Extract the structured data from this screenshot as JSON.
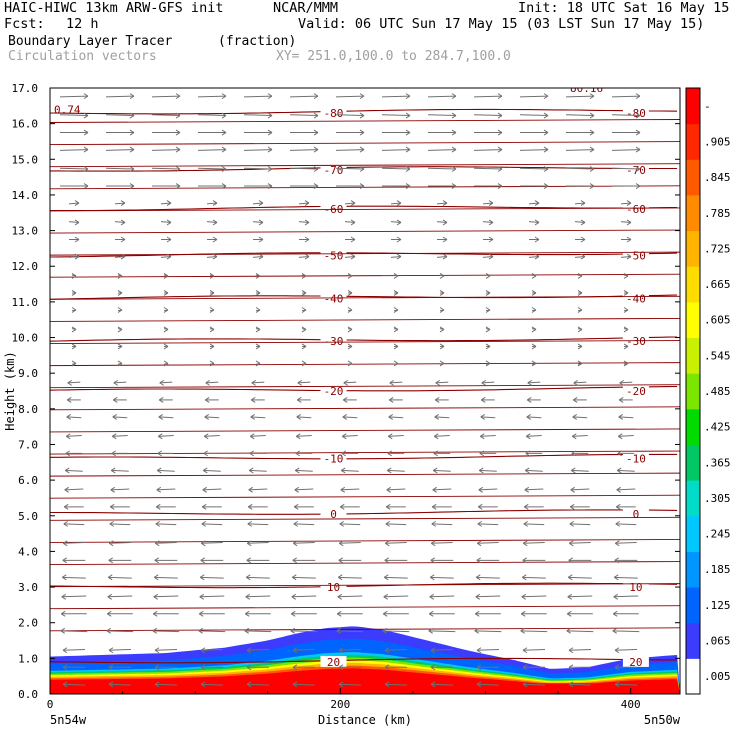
{
  "header": {
    "model": "HAIC-HIWC 13km ARW-GFS init",
    "org": "NCAR/MMM",
    "init": "Init: 18 UTC Sat 16 May 15",
    "fcst_label": "Fcst:",
    "fcst_value": "12 h",
    "valid": "Valid: 06 UTC Sun 17 May 15 (03 LST Sun 17 May 15)",
    "field": "Boundary Layer Tracer",
    "units": "(fraction)",
    "vectors": "Circulation vectors",
    "xy": "XY= 251.0,100.0 to 284.7,100.0"
  },
  "chart_data": {
    "type": "heatmap",
    "title": "Boundary Layer Tracer",
    "xlabel": "Distance (km)",
    "ylabel": "Height (km)",
    "xlim": [
      0,
      434
    ],
    "ylim": [
      0,
      17
    ],
    "x_ticks": [
      "0",
      "200",
      "400"
    ],
    "x_tick_values": [
      0,
      200,
      400
    ],
    "x_end_labels": [
      "5n54w",
      "5n50w"
    ],
    "y_ticks": [
      "0.0",
      "1.0",
      "2.0",
      "3.0",
      "4.0",
      "5.0",
      "6.0",
      "7.0",
      "8.0",
      "9.0",
      "10.0",
      "11.0",
      "12.0",
      "13.0",
      "14.0",
      "15.0",
      "16.0",
      "17.0"
    ],
    "tracer_top_profile": {
      "x": [
        0,
        40,
        80,
        120,
        150,
        170,
        190,
        210,
        230,
        260,
        290,
        320,
        345,
        370,
        400,
        434
      ],
      "height_km": [
        1.05,
        1.1,
        1.15,
        1.3,
        1.5,
        1.7,
        1.85,
        1.9,
        1.8,
        1.5,
        1.2,
        0.95,
        0.7,
        0.75,
        1.0,
        1.1
      ]
    },
    "temperature_contours": {
      "labels": [
        "-80",
        "-70",
        "-60",
        "-50",
        "-40",
        "-30",
        "-20",
        "-10",
        "0",
        "10",
        "20"
      ],
      "values": [
        -80,
        -70,
        -60,
        -50,
        -40,
        -30,
        -20,
        -10,
        0,
        10,
        20
      ],
      "heights_km": [
        16.3,
        14.7,
        13.6,
        12.3,
        11.1,
        9.9,
        8.5,
        6.6,
        5.05,
        3.0,
        0.9
      ],
      "corner_labels": [
        "0.74",
        "80.16"
      ]
    },
    "colorbar": {
      "labels": [
        ".005",
        ".065",
        ".125",
        ".185",
        ".245",
        ".305",
        ".365",
        ".425",
        ".485",
        ".545",
        ".605",
        ".665",
        ".725",
        ".785",
        ".845",
        ".905",
        "-"
      ],
      "colors": [
        "#ffffff",
        "#3c3cff",
        "#0064ff",
        "#0096ff",
        "#00c8ff",
        "#00dcc8",
        "#00c864",
        "#00dc00",
        "#7ce600",
        "#c8f000",
        "#ffff00",
        "#ffdc00",
        "#ffb400",
        "#ff8c00",
        "#ff5a00",
        "#ff2800",
        "#ff0000"
      ]
    }
  }
}
